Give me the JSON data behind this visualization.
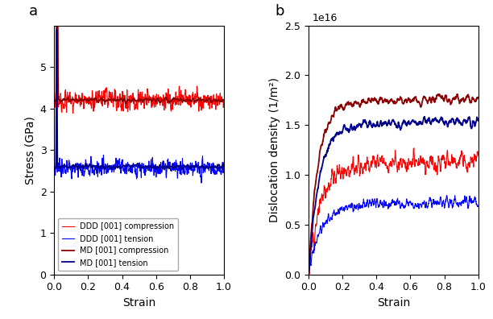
{
  "panel_a": {
    "title": "a",
    "xlabel": "Strain",
    "ylabel": "Stress (GPa)",
    "ylim": [
      0,
      6
    ],
    "yticks": [
      0,
      1,
      2,
      3,
      4,
      5
    ],
    "xlim": [
      0.0,
      1.0
    ],
    "series": {
      "MD_compression": {
        "color": "#8B0000",
        "lw": 1.3,
        "label": "MD [001] compression"
      },
      "MD_tension": {
        "color": "#00008B",
        "lw": 1.3,
        "label": "MD [001] tension"
      },
      "DDD_compression": {
        "color": "#FF0000",
        "lw": 0.8,
        "label": "DDD [001] compression"
      },
      "DDD_tension": {
        "color": "#0000FF",
        "lw": 0.8,
        "label": "DDD [001] tension"
      }
    }
  },
  "panel_b": {
    "title": "b",
    "xlabel": "Strain",
    "ylabel": "Dislocation density (1/m²)",
    "ylim": [
      0.0,
      2.5e+16
    ],
    "xlim": [
      0.0,
      1.0
    ],
    "yticks": [
      0.0,
      5000000000000000.0,
      1e+16,
      1.5e+16,
      2e+16,
      2.5e+16
    ],
    "ytick_labels": [
      "0.0",
      "0.5",
      "1.0",
      "1.5",
      "2.0",
      "2.5"
    ],
    "sci_label": "1e16",
    "series": {
      "MD_compression": {
        "color": "#8B0000",
        "lw": 1.3,
        "label": "MD [001] compression"
      },
      "MD_tension": {
        "color": "#00008B",
        "lw": 1.3,
        "label": "MD [001] tension"
      },
      "DDD_compression": {
        "color": "#FF0000",
        "lw": 0.8,
        "label": "DDD [001] compression"
      },
      "DDD_tension": {
        "color": "#0000FF",
        "lw": 0.8,
        "label": "DDD [001] tension"
      }
    }
  }
}
